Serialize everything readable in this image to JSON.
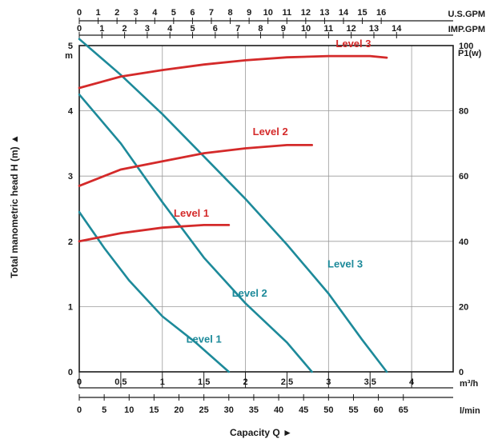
{
  "chart_data": {
    "type": "line",
    "ylabel_left": "Total manometric head H (m) ▲",
    "ylabel_left_unit": "m",
    "ylabel_right_unit": "P1(w)",
    "xlabel": "Capacity Q ►",
    "ylim": [
      0,
      5
    ],
    "y_ticks": [
      "0",
      "1",
      "2",
      "3",
      "4",
      "5"
    ],
    "y2lim": [
      0,
      100
    ],
    "y2_ticks": [
      "0",
      "20",
      "40",
      "60",
      "80",
      "100"
    ],
    "x_m3h": {
      "unit": "m³/h",
      "ticks": [
        {
          "v": 0,
          "t": "0"
        },
        {
          "v": 0.5,
          "t": "0,5"
        },
        {
          "v": 1,
          "t": "1"
        },
        {
          "v": 1.5,
          "t": "1,5"
        },
        {
          "v": 2,
          "t": "2"
        },
        {
          "v": 2.5,
          "t": "2,5"
        },
        {
          "v": 3,
          "t": "3"
        },
        {
          "v": 3.5,
          "t": "3,5"
        },
        {
          "v": 4,
          "t": "4"
        }
      ]
    },
    "x_lmin": {
      "unit": "l/min",
      "ticks": [
        "0",
        "5",
        "10",
        "15",
        "20",
        "25",
        "30",
        "35",
        "40",
        "45",
        "50",
        "55",
        "60",
        "65"
      ]
    },
    "x_usgpm": {
      "unit": "U.S.GPM",
      "ticks": [
        "0",
        "1",
        "2",
        "3",
        "4",
        "5",
        "6",
        "7",
        "8",
        "9",
        "10",
        "11",
        "12",
        "13",
        "14",
        "15",
        "16"
      ]
    },
    "x_impgpm": {
      "unit": "IMP.GPM",
      "ticks": [
        "0",
        "1",
        "2",
        "3",
        "4",
        "5",
        "6",
        "7",
        "8",
        "9",
        "10",
        "11",
        "12",
        "13",
        "14"
      ]
    },
    "head_series": [
      {
        "name": "Level 1",
        "color": "#1d8a9a",
        "label_at": [
          1.5,
          0.45
        ],
        "points": [
          [
            0,
            2.45
          ],
          [
            0.3,
            1.9
          ],
          [
            0.6,
            1.4
          ],
          [
            1.0,
            0.85
          ],
          [
            1.4,
            0.45
          ],
          [
            1.8,
            0.0
          ]
        ]
      },
      {
        "name": "Level 2",
        "color": "#1d8a9a",
        "label_at": [
          2.05,
          1.15
        ],
        "points": [
          [
            0,
            4.25
          ],
          [
            0.5,
            3.5
          ],
          [
            1.0,
            2.6
          ],
          [
            1.5,
            1.75
          ],
          [
            2.0,
            1.05
          ],
          [
            2.5,
            0.45
          ],
          [
            2.8,
            0.0
          ]
        ]
      },
      {
        "name": "Level 3",
        "color": "#1d8a9a",
        "label_at": [
          3.2,
          1.6
        ],
        "points": [
          [
            0,
            5.1
          ],
          [
            0.5,
            4.55
          ],
          [
            1.0,
            3.95
          ],
          [
            1.5,
            3.3
          ],
          [
            2.0,
            2.65
          ],
          [
            2.5,
            1.95
          ],
          [
            3.0,
            1.2
          ],
          [
            3.4,
            0.5
          ],
          [
            3.7,
            0.0
          ]
        ]
      }
    ],
    "power_series": [
      {
        "name": "Level 1",
        "color": "#d42a2a",
        "label_at": [
          1.35,
          47.5
        ],
        "points": [
          [
            0,
            40
          ],
          [
            0.5,
            42.5
          ],
          [
            1.0,
            44.2
          ],
          [
            1.5,
            45
          ],
          [
            1.8,
            45
          ]
        ]
      },
      {
        "name": "Level 2",
        "color": "#d42a2a",
        "label_at": [
          2.3,
          72.5
        ],
        "points": [
          [
            0,
            57
          ],
          [
            0.5,
            62
          ],
          [
            1.0,
            64.5
          ],
          [
            1.5,
            67
          ],
          [
            2.0,
            68.5
          ],
          [
            2.5,
            69.5
          ],
          [
            2.8,
            69.5
          ]
        ]
      },
      {
        "name": "Level 3",
        "color": "#d42a2a",
        "label_at": [
          3.3,
          99.5
        ],
        "points": [
          [
            0,
            87
          ],
          [
            0.5,
            90.5
          ],
          [
            1.0,
            92.5
          ],
          [
            1.5,
            94.2
          ],
          [
            2.0,
            95.5
          ],
          [
            2.5,
            96.4
          ],
          [
            3.0,
            96.8
          ],
          [
            3.5,
            96.8
          ],
          [
            3.7,
            96.3
          ]
        ]
      }
    ]
  }
}
